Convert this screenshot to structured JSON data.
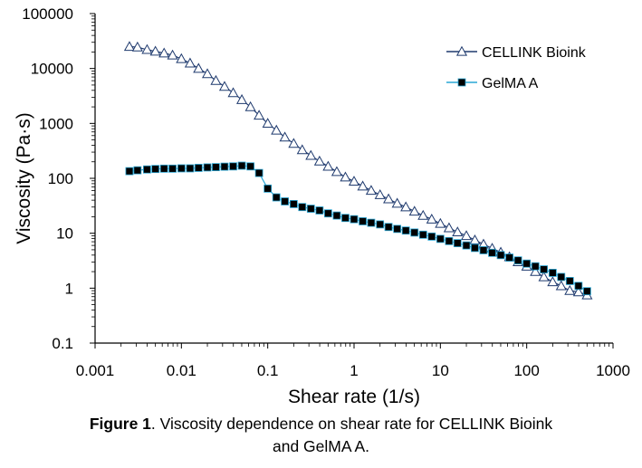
{
  "caption": {
    "label": "Figure 1",
    "text": ". Viscosity dependence on shear rate for CELLINK Bioink",
    "text2": "and GelMA A."
  },
  "chart_data": {
    "type": "scatter",
    "title": "",
    "xlabel": "Shear rate (1/s)",
    "ylabel": "Viscosity (Pa·s)",
    "xscale": "log",
    "yscale": "log",
    "xlim": [
      0.001,
      1000
    ],
    "ylim": [
      0.1,
      100000
    ],
    "x_ticks": [
      "0.001",
      "0.01",
      "0.1",
      "1",
      "10",
      "100",
      "1000"
    ],
    "y_ticks": [
      "0.1",
      "1",
      "10",
      "100",
      "1000",
      "10000",
      "100000"
    ],
    "grid": false,
    "legend_position": "top-right",
    "series": [
      {
        "name": "CELLINK Bioink",
        "marker": "open-triangle",
        "color": "#1f3a6e",
        "x": [
          0.0025,
          0.0031,
          0.004,
          0.005,
          0.0063,
          0.0079,
          0.01,
          0.0126,
          0.0158,
          0.02,
          0.0251,
          0.0316,
          0.0398,
          0.0501,
          0.0631,
          0.0794,
          0.1,
          0.126,
          0.158,
          0.2,
          0.251,
          0.316,
          0.398,
          0.501,
          0.631,
          0.794,
          1.0,
          1.26,
          1.58,
          2.0,
          2.51,
          3.16,
          3.98,
          5.01,
          6.31,
          7.94,
          10.0,
          12.6,
          15.8,
          20.0,
          25.1,
          31.6,
          39.8,
          50.1,
          63.1,
          79.4,
          100,
          126,
          158,
          200,
          251,
          316,
          398,
          501
        ],
        "y": [
          25000,
          24500,
          22000,
          20500,
          19000,
          17500,
          15000,
          12500,
          10000,
          8000,
          6000,
          4700,
          3600,
          2700,
          2000,
          1400,
          1000,
          750,
          560,
          430,
          330,
          260,
          205,
          165,
          132,
          105,
          88,
          72,
          60,
          50,
          42,
          35,
          30,
          25,
          21,
          18,
          15,
          12.5,
          10.5,
          9,
          7.5,
          6.3,
          5.3,
          4.5,
          3.7,
          3.0,
          2.5,
          2.0,
          1.6,
          1.3,
          1.1,
          0.9,
          0.85,
          0.75
        ]
      },
      {
        "name": "GelMA A",
        "marker": "filled-square",
        "color": "#29a7d6",
        "x": [
          0.0025,
          0.0031,
          0.004,
          0.005,
          0.0063,
          0.0079,
          0.01,
          0.0126,
          0.0158,
          0.02,
          0.0251,
          0.0316,
          0.0398,
          0.0501,
          0.0631,
          0.0794,
          0.1,
          0.126,
          0.158,
          0.2,
          0.251,
          0.316,
          0.398,
          0.501,
          0.631,
          0.794,
          1.0,
          1.26,
          1.58,
          2.0,
          2.51,
          3.16,
          3.98,
          5.01,
          6.31,
          7.94,
          10.0,
          12.6,
          15.8,
          20.0,
          25.1,
          31.6,
          39.8,
          50.1,
          63.1,
          79.4,
          100,
          126,
          158,
          200,
          251,
          316,
          398,
          501
        ],
        "y": [
          135,
          140,
          145,
          148,
          150,
          150,
          152,
          152,
          155,
          158,
          160,
          163,
          165,
          170,
          165,
          125,
          65,
          45,
          38,
          34,
          30,
          28,
          26,
          23,
          21,
          19,
          18,
          16.5,
          15.5,
          14.5,
          13,
          12,
          11.2,
          10.3,
          9.4,
          8.7,
          7.9,
          7.2,
          6.6,
          6.0,
          5.4,
          4.9,
          4.4,
          4.0,
          3.6,
          3.2,
          2.8,
          2.5,
          2.2,
          1.9,
          1.6,
          1.35,
          1.1,
          0.88
        ]
      }
    ]
  }
}
